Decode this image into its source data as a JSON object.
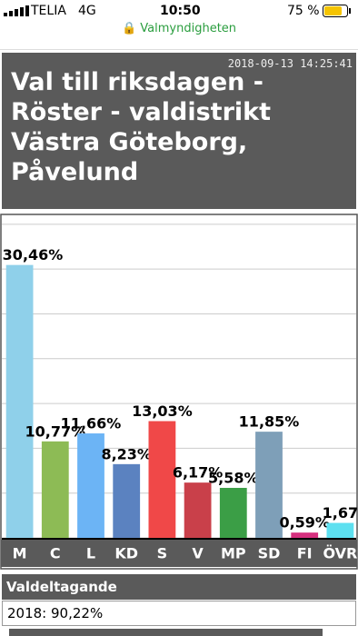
{
  "status_bar": {
    "carrier": "TELIA",
    "network": "4G",
    "time": "10:50",
    "battery": "75 %"
  },
  "url": "Valmyndigheten",
  "header": {
    "timestamp": "2018-09-13 14:25:41",
    "title": "Val till riksdagen - Röster - valdistrikt Västra Göteborg, Påvelund"
  },
  "chart_data": {
    "type": "bar",
    "categories": [
      "M",
      "C",
      "L",
      "KD",
      "S",
      "V",
      "MP",
      "SD",
      "FI",
      "ÖVR"
    ],
    "values": [
      30.46,
      10.77,
      11.66,
      8.23,
      13.03,
      6.17,
      5.58,
      11.85,
      0.59,
      1.67
    ],
    "value_labels": [
      "30,46%",
      "10,77%",
      "11,66%",
      "8,23%",
      "13,03%",
      "6,17%",
      "5,58%",
      "11,85%",
      "0,59%",
      "1,67"
    ],
    "colors": [
      "#8fd0ea",
      "#8dbb55",
      "#6cb4f5",
      "#5b82c0",
      "#f04848",
      "#c9404a",
      "#3b9e46",
      "#7e9fb8",
      "#d6307f",
      "#5de0f0"
    ],
    "ylim": [
      0,
      36
    ],
    "yticks": [
      0,
      5,
      10,
      15,
      20,
      25,
      30,
      35
    ],
    "grid": true
  },
  "turnout": {
    "heading": "Valdeltagande",
    "row": "2018: 90,22%"
  }
}
